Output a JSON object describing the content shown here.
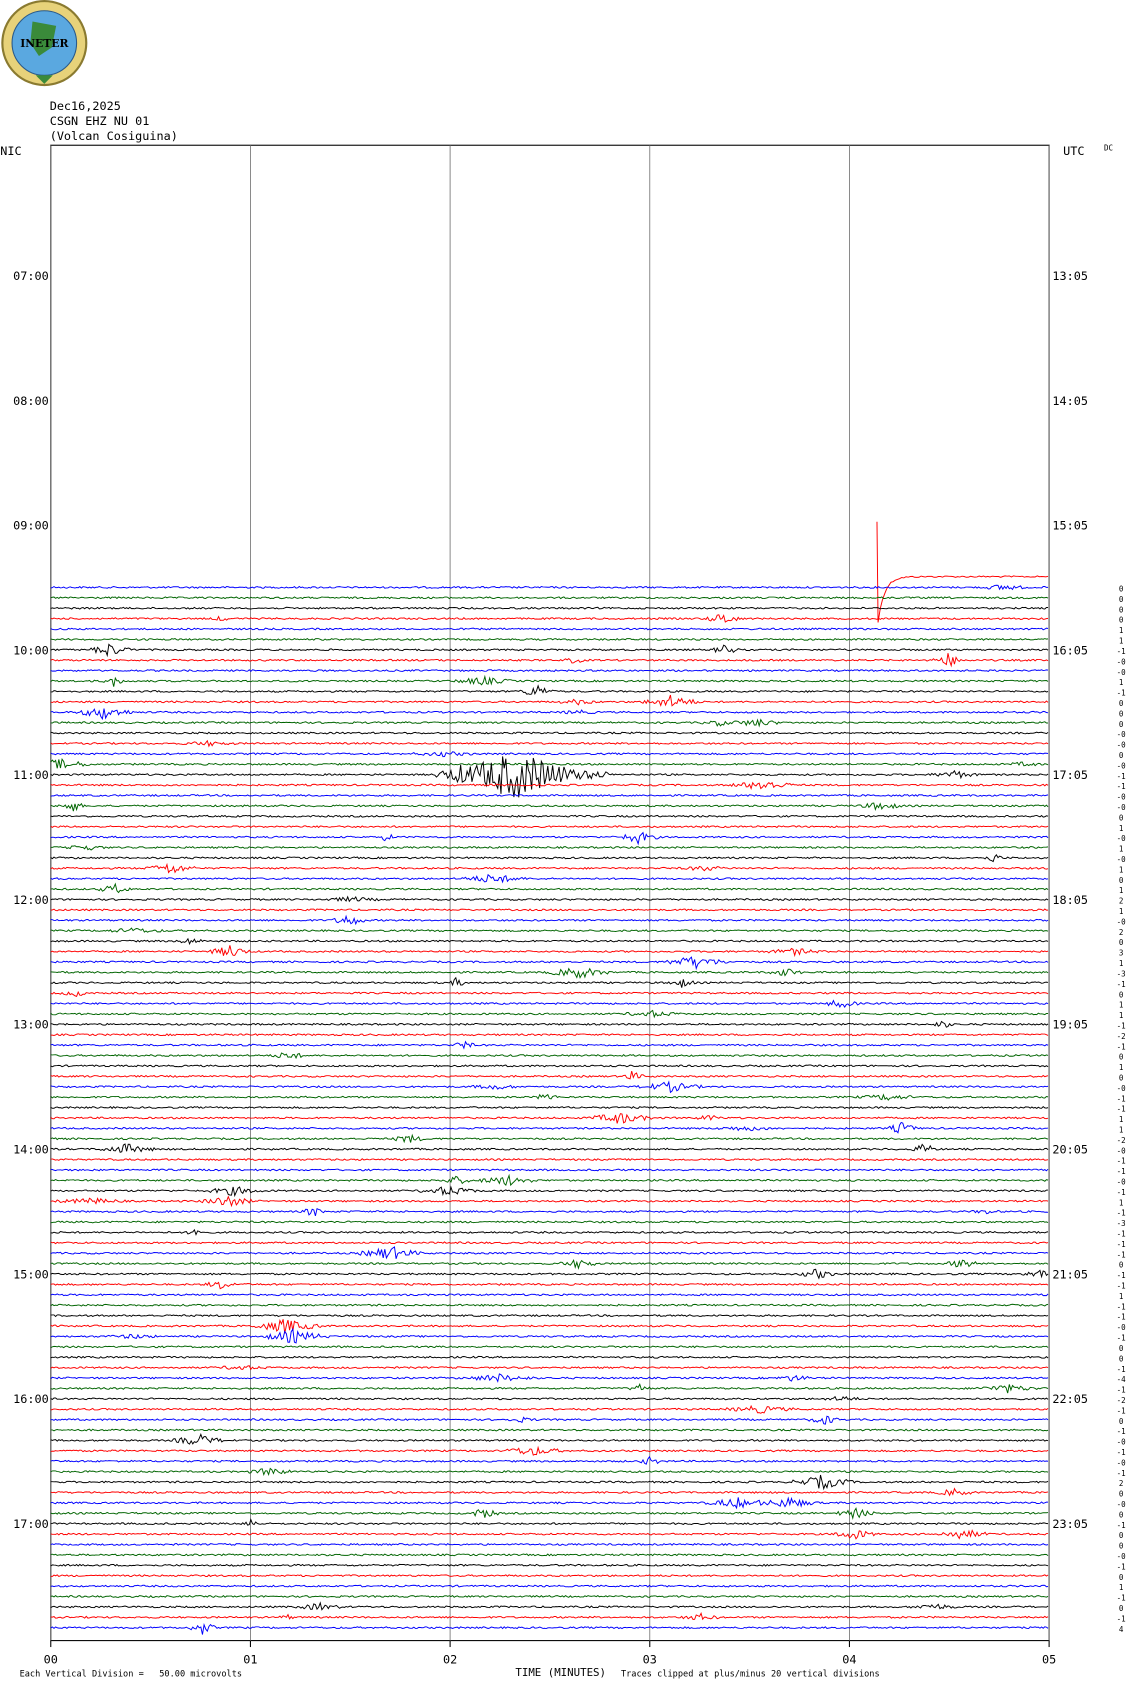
{
  "header": {
    "logo": "INETER",
    "date": "Dec16,2025",
    "station": "CSGN EHZ NU 01",
    "location": "(Volcan Cosiguina)",
    "left_zone": "NIC",
    "right_zone": "UTC",
    "filter": "DC"
  },
  "left_times": [
    "07:00",
    "08:00",
    "09:00",
    "10:00",
    "11:00",
    "12:00",
    "13:00",
    "14:00",
    "15:00",
    "16:00",
    "17:00"
  ],
  "right_times": [
    "13:05",
    "14:05",
    "15:05",
    "16:05",
    "17:05",
    "18:05",
    "19:05",
    "20:05",
    "21:05",
    "22:05",
    "23:05"
  ],
  "x_ticks": [
    "00",
    "01",
    "02",
    "03",
    "04",
    "05"
  ],
  "x_title": "TIME (MINUTES)",
  "scale_note": "Each Vertical Division =   50.00 microvolts",
  "clip_note": "Traces clipped at plus/minus 20 vertical divisions",
  "trace_offsets": [
    "0",
    "0",
    "0",
    "0",
    "1",
    "1",
    "-1",
    "-0",
    "-0",
    "1",
    "-1",
    "0",
    "0",
    "0",
    "-0",
    "-0",
    "0",
    "-0",
    "-1",
    "-1",
    "-0",
    "-0",
    "0",
    "1",
    "-0",
    "1",
    "-0",
    "1",
    "0",
    "1",
    "2",
    "1",
    "-0",
    "2",
    "0",
    "3",
    "1",
    "-3",
    "-1",
    "0",
    "1",
    "1",
    "-1",
    "-2",
    "-1",
    "0",
    "1",
    "0",
    "-0",
    "-1",
    "-1",
    "1",
    "1",
    "-2",
    "-0",
    "-1",
    "-1",
    "-0",
    "-1",
    "1",
    "-1",
    "-3",
    "-1",
    "-1",
    "-1",
    "0",
    "-1",
    "-1",
    "1",
    "-1",
    "-1",
    "-0",
    "-1",
    "0",
    "0",
    "-1",
    "-4",
    "-1",
    "-2",
    "-1",
    "0",
    "-1",
    "-0",
    "-1",
    "-0",
    "-1",
    "2",
    "0",
    "-0",
    "0",
    "-1",
    "0",
    "0",
    "-0",
    "-1",
    "0",
    "1",
    "-1",
    "0",
    "-1",
    "4"
  ]
}
